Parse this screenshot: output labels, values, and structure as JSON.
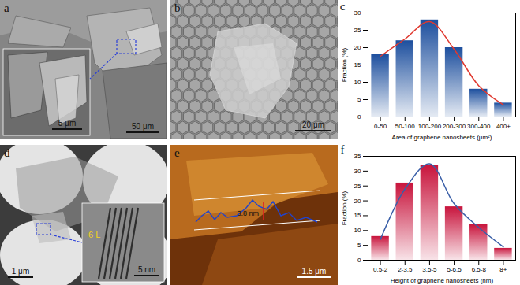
{
  "panels": [
    {
      "label": "a",
      "scale_bar": "50 μm",
      "inset": {
        "scale_bar": "5 μm"
      }
    },
    {
      "label": "b",
      "scale_bar": "20 μm"
    },
    {
      "label": "d",
      "scale_bar": "1 μm",
      "inset": {
        "scale_bar": "5 nm",
        "annotation": "6 L"
      }
    },
    {
      "label": "e",
      "scale_bar": "1.5 μm",
      "annotation": "3.8 nm"
    }
  ],
  "chart_data": [
    {
      "type": "bar",
      "annotations": [
        "c"
      ],
      "categories": [
        "0-50",
        "50-100",
        "100-200",
        "200-300",
        "300-400",
        "400+"
      ],
      "series": [
        {
          "type": "bar",
          "color": "#1d4f9e",
          "values": [
            18,
            22,
            28,
            20,
            8,
            4
          ]
        },
        {
          "type": "line",
          "color": "#e0392f",
          "values": [
            17.5,
            22.5,
            27.5,
            19.5,
            9,
            3.5
          ]
        }
      ],
      "x_label": "Area of graphene nanosheets (μm²)",
      "y_label": "Fraction (%)",
      "ylim": [
        0,
        30
      ],
      "yticks": [
        0,
        5,
        10,
        15,
        20,
        25,
        30
      ]
    },
    {
      "type": "bar",
      "annotations": [
        "f"
      ],
      "categories": [
        "0.5-2",
        "2-3.5",
        "3.5-5",
        "5-6.5",
        "6.5-8",
        "8+"
      ],
      "series": [
        {
          "type": "bar",
          "color": "#c8143c",
          "values": [
            8,
            26,
            32,
            18,
            12,
            4
          ]
        },
        {
          "type": "line",
          "color": "#3a5fa8",
          "values": [
            7,
            24,
            32.5,
            19,
            11,
            4.5
          ]
        }
      ],
      "x_label": "Height of graphene nanosheets (nm)",
      "y_label": "Fraction (%)",
      "ylim": [
        0,
        35
      ],
      "yticks": [
        0,
        5,
        10,
        15,
        20,
        25,
        30,
        35
      ]
    }
  ]
}
